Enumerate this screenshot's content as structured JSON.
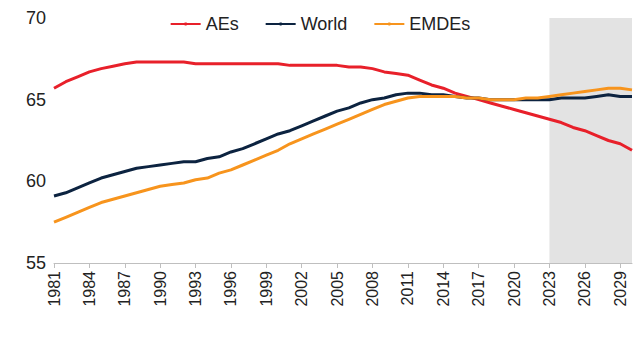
{
  "chart_data": {
    "type": "line",
    "x": [
      1981,
      1982,
      1983,
      1984,
      1985,
      1986,
      1987,
      1988,
      1989,
      1990,
      1991,
      1992,
      1993,
      1994,
      1995,
      1996,
      1997,
      1998,
      1999,
      2000,
      2001,
      2002,
      2003,
      2004,
      2005,
      2006,
      2007,
      2008,
      2009,
      2010,
      2011,
      2012,
      2013,
      2014,
      2015,
      2016,
      2017,
      2018,
      2019,
      2020,
      2021,
      2022,
      2023,
      2024,
      2025,
      2026,
      2027,
      2028,
      2029,
      2030
    ],
    "xlim": [
      1981,
      2030
    ],
    "xticks": [
      1981,
      1984,
      1987,
      1990,
      1993,
      1996,
      1999,
      2002,
      2005,
      2008,
      2011,
      2014,
      2017,
      2020,
      2023,
      2026,
      2029
    ],
    "ylim": [
      55,
      70
    ],
    "yticks": [
      55,
      60,
      65,
      70
    ],
    "grid": false,
    "legend": "top",
    "shaded": {
      "from": 2023,
      "to": 2030
    },
    "series": [
      {
        "name": "AEs",
        "color": "#e8202a",
        "values": [
          65.7,
          66.1,
          66.4,
          66.7,
          66.9,
          67.05,
          67.2,
          67.3,
          67.3,
          67.3,
          67.3,
          67.3,
          67.2,
          67.2,
          67.2,
          67.2,
          67.2,
          67.2,
          67.2,
          67.2,
          67.1,
          67.1,
          67.1,
          67.1,
          67.1,
          67.0,
          67.0,
          66.9,
          66.7,
          66.6,
          66.5,
          66.2,
          65.9,
          65.7,
          65.4,
          65.2,
          65.0,
          64.8,
          64.6,
          64.4,
          64.2,
          64.0,
          63.8,
          63.6,
          63.3,
          63.1,
          62.8,
          62.5,
          62.3,
          61.9
        ]
      },
      {
        "name": "World",
        "color": "#0c2340",
        "values": [
          59.1,
          59.3,
          59.6,
          59.9,
          60.2,
          60.4,
          60.6,
          60.8,
          60.9,
          61.0,
          61.1,
          61.2,
          61.2,
          61.4,
          61.5,
          61.8,
          62.0,
          62.3,
          62.6,
          62.9,
          63.1,
          63.4,
          63.7,
          64.0,
          64.3,
          64.5,
          64.8,
          65.0,
          65.1,
          65.3,
          65.4,
          65.4,
          65.3,
          65.3,
          65.2,
          65.1,
          65.1,
          65.0,
          65.0,
          65.0,
          65.0,
          65.0,
          65.0,
          65.1,
          65.1,
          65.1,
          65.2,
          65.3,
          65.2,
          65.2
        ]
      },
      {
        "name": "EMDEs",
        "color": "#f7941d",
        "values": [
          57.5,
          57.8,
          58.1,
          58.4,
          58.7,
          58.9,
          59.1,
          59.3,
          59.5,
          59.7,
          59.8,
          59.9,
          60.1,
          60.2,
          60.5,
          60.7,
          61.0,
          61.3,
          61.6,
          61.9,
          62.3,
          62.6,
          62.9,
          63.2,
          63.5,
          63.8,
          64.1,
          64.4,
          64.7,
          64.9,
          65.1,
          65.2,
          65.2,
          65.2,
          65.2,
          65.1,
          65.1,
          65.0,
          65.0,
          65.0,
          65.1,
          65.1,
          65.2,
          65.3,
          65.4,
          65.5,
          65.6,
          65.7,
          65.7,
          65.6
        ]
      }
    ]
  }
}
